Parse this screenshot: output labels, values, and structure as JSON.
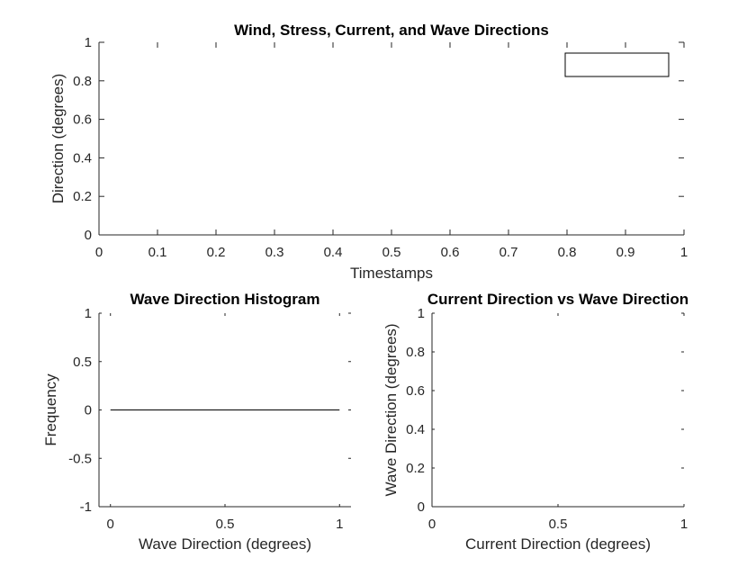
{
  "colors": {
    "axis": "#262626",
    "background": "#ffffff",
    "line": "#000000"
  },
  "chart_data": [
    {
      "type": "line",
      "title": "Wind, Stress, Current, and Wave Directions",
      "xlabel": "Timestamps",
      "ylabel": "Direction (degrees)",
      "xlim": [
        0,
        1
      ],
      "ylim": [
        0,
        1
      ],
      "x_ticks": [
        "0",
        "0.1",
        "0.2",
        "0.3",
        "0.4",
        "0.5",
        "0.6",
        "0.7",
        "0.8",
        "0.9",
        "1"
      ],
      "y_ticks": [
        "0",
        "0.2",
        "0.4",
        "0.6",
        "0.8",
        "1"
      ],
      "series": [],
      "legend": {
        "location": "top-right",
        "entries": []
      }
    },
    {
      "type": "bar",
      "title": "Wave Direction Histogram",
      "xlabel": "Wave Direction (degrees)",
      "ylabel": "Frequency",
      "xlim": [
        -0.05,
        1.05
      ],
      "ylim": [
        -1,
        1
      ],
      "x_ticks": [
        "0",
        "0.5",
        "1"
      ],
      "y_ticks": [
        "-1",
        "-0.5",
        "0",
        "0.5",
        "1"
      ],
      "baseline": {
        "y": 0,
        "x_from": 0,
        "x_to": 1
      },
      "values": []
    },
    {
      "type": "scatter",
      "title": "Current Direction vs Wave Direction",
      "xlabel": "Current Direction (degrees)",
      "ylabel": "Wave Direction (degrees)",
      "xlim": [
        0,
        1
      ],
      "ylim": [
        0,
        1
      ],
      "x_ticks": [
        "0",
        "0.5",
        "1"
      ],
      "y_ticks": [
        "0",
        "0.2",
        "0.4",
        "0.6",
        "0.8",
        "1"
      ],
      "points": []
    }
  ]
}
